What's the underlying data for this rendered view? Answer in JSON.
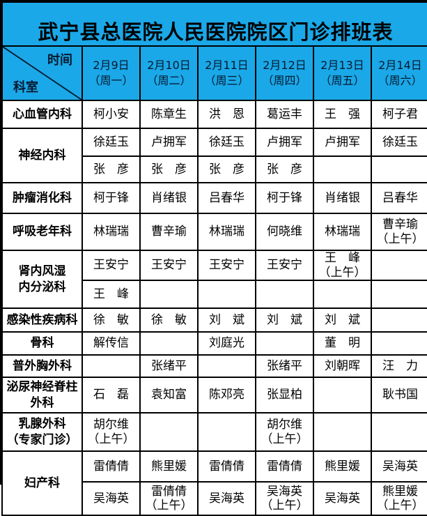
{
  "title": "武宁县总医院人民医院院区门诊排班表",
  "colors": {
    "header_bg": "#1AA8E8",
    "grid_line": "#000000",
    "body_bg": "#FFFFFF",
    "text": "#000000"
  },
  "header": {
    "corner_top": "时间",
    "corner_bottom": "科室",
    "dates": [
      "2月9日\n（周一）",
      "2月10日\n（周二）",
      "2月11日\n（周三）",
      "2月12日\n（周四）",
      "2月13日\n（周五）",
      "2月14日\n（周六）"
    ]
  },
  "schedule": {
    "rows": [
      {
        "dept": "心血管内科",
        "subrows": [
          {
            "cells": [
              "柯小安",
              "陈章生",
              "洪　恩",
              "葛运丰",
              "王　强",
              "柯子君"
            ]
          }
        ]
      },
      {
        "dept": "神经内科",
        "subrows": [
          {
            "cells": [
              "徐廷玉",
              "卢拥军",
              "徐廷玉",
              "卢拥军",
              "卢拥军",
              "徐廷玉"
            ]
          },
          {
            "cells": [
              "张　彦",
              "张　彦",
              "张　彦",
              "张　彦",
              "",
              ""
            ]
          }
        ]
      },
      {
        "dept": "肿瘤消化科",
        "subrows": [
          {
            "cells": [
              "柯于锋",
              "肖绪银",
              "吕春华",
              "柯于锋",
              "肖绪银",
              "吕春华"
            ]
          }
        ]
      },
      {
        "dept": "呼吸老年科",
        "subrows": [
          {
            "cells": [
              "林瑞瑞",
              "曹辛瑜",
              "林瑞瑞",
              "何晓维",
              "林瑞瑞",
              "曹辛瑜\n（上午）"
            ]
          }
        ]
      },
      {
        "dept": "肾内风湿\n内分泌科",
        "subrows": [
          {
            "cells": [
              "王安宁",
              "王安宁",
              "王安宁",
              "王安宁",
              "王　峰\n（上午）",
              ""
            ]
          },
          {
            "cells": [
              "王　峰",
              "",
              "",
              "",
              "",
              ""
            ]
          }
        ]
      },
      {
        "dept": "感染性疾病科",
        "subrows": [
          {
            "cells": [
              "徐　敏",
              "徐　敏",
              "刘　斌",
              "刘　斌",
              "刘　斌",
              ""
            ]
          }
        ]
      },
      {
        "dept": "骨科",
        "subrows": [
          {
            "cells": [
              "解传信",
              "",
              "刘庭光",
              "",
              "董　明",
              ""
            ]
          }
        ]
      },
      {
        "dept": "普外胸外科",
        "subrows": [
          {
            "cells": [
              "",
              "张绪平",
              "",
              "张绪平",
              "刘朝晖",
              "汪　力"
            ]
          }
        ]
      },
      {
        "dept": "泌尿神经脊柱\n外科",
        "subrows": [
          {
            "cells": [
              "石　磊",
              "袁知富",
              "陈邓亮",
              "张显柏",
              "",
              "耿书国"
            ]
          }
        ]
      },
      {
        "dept": "乳腺外科\n（专家门诊）",
        "subrows": [
          {
            "cells": [
              "胡尔维\n（上午）",
              "",
              "",
              "胡尔维\n（上午）",
              "",
              ""
            ]
          }
        ]
      },
      {
        "dept": "妇产科",
        "subrows": [
          {
            "cells": [
              "雷倩倩",
              "熊里媛",
              "雷倩倩",
              "雷倩倩",
              "熊里媛",
              "吴海英"
            ]
          },
          {
            "cells": [
              "吴海英",
              "雷倩倩\n（上午）",
              "吴海英",
              "吴海英\n（上午）",
              "吴海英",
              "熊里媛\n（上午）"
            ]
          }
        ]
      }
    ]
  }
}
